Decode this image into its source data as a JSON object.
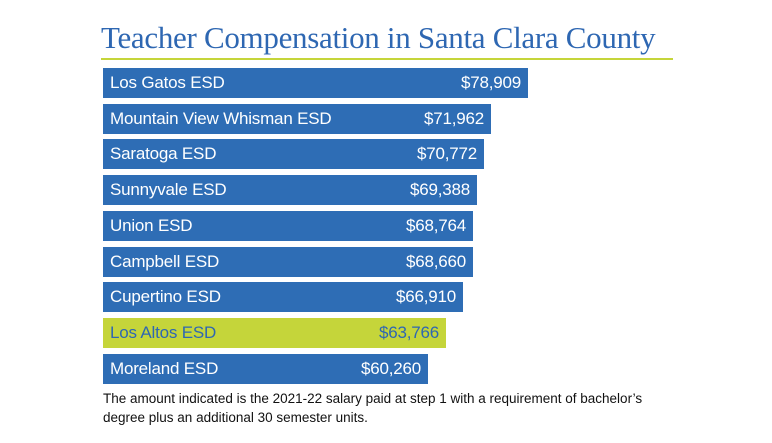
{
  "chart_data": {
    "type": "bar",
    "orientation": "horizontal",
    "title": "Teacher Compensation in Santa Clara County",
    "categories": [
      "Los Gatos ESD",
      "Mountain View Whisman ESD",
      "Saratoga ESD",
      "Sunnyvale ESD",
      "Union ESD",
      "Campbell ESD",
      "Cupertino ESD",
      "Los Altos ESD",
      "Moreland ESD"
    ],
    "values": [
      78909,
      71962,
      70772,
      69388,
      68764,
      68660,
      66910,
      63766,
      60260
    ],
    "value_labels": [
      "$78,909",
      "$71,962",
      "$70,772",
      "$69,388",
      "$68,764",
      "$68,660",
      "$66,910",
      "$63,766",
      "$60,260"
    ],
    "highlighted_category": "Los Altos ESD",
    "xlim": [
      0,
      78909
    ],
    "grid": false,
    "legend": "none",
    "footnote": "The amount indicated is the 2021-22 salary paid at step 1 with a requirement of bachelor’s degree plus an additional 30 semester units."
  },
  "colors": {
    "title": "#2e67b2",
    "bar": "#2e6db5",
    "highlight": "#c5d53a",
    "rule": "#c5d53a"
  }
}
